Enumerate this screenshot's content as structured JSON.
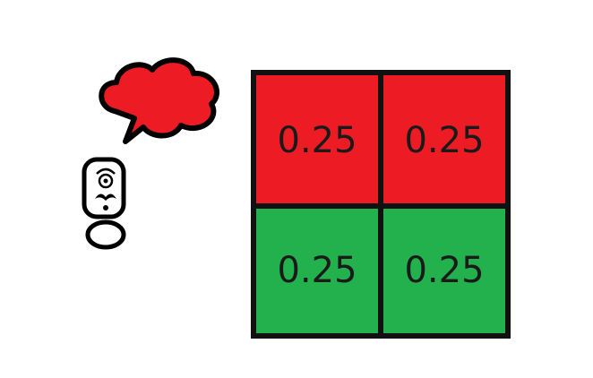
{
  "figure": {
    "character": {
      "icon": "one-eyed-mustached-person-icon",
      "thought": "thought-cloud-icon"
    },
    "colors": {
      "top_row": "#ed1c24",
      "bottom_row": "#22b14c",
      "grid_line": "#111111",
      "cloud": "#ed1c24"
    },
    "grid": {
      "rows": [
        {
          "color": "#ed1c24",
          "cells": [
            "0.25",
            "0.25"
          ]
        },
        {
          "color": "#22b14c",
          "cells": [
            "0.25",
            "0.25"
          ]
        }
      ]
    }
  }
}
